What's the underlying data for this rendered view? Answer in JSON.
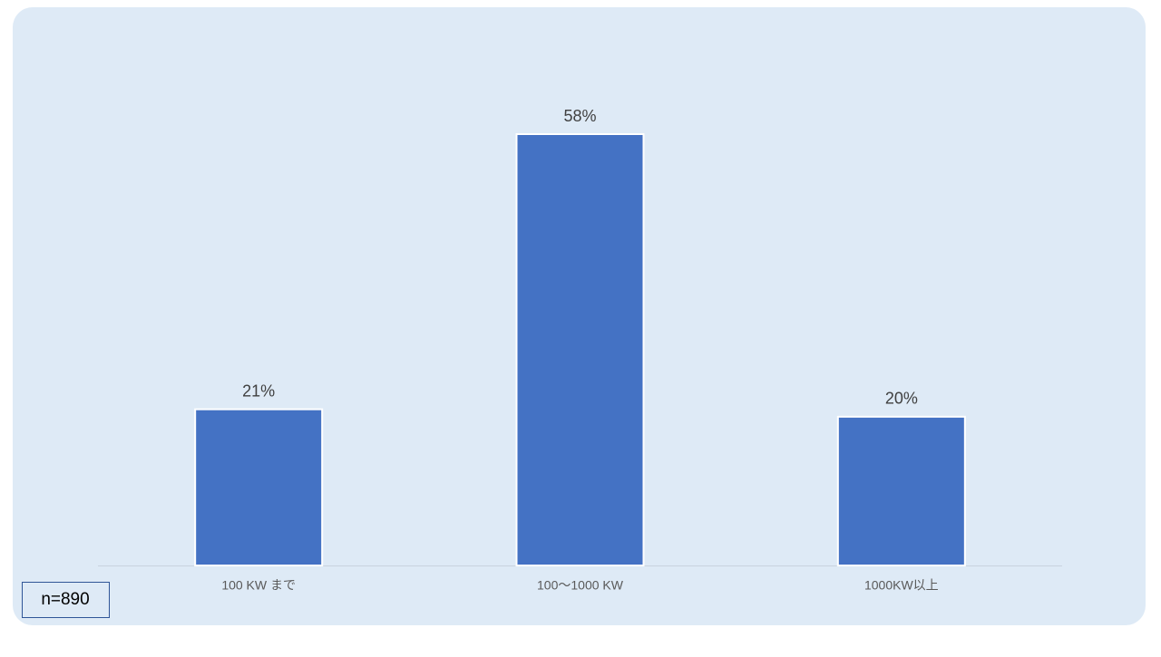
{
  "chart_data": {
    "type": "bar",
    "categories": [
      "100 KW まで",
      "100～1000 KW",
      "1000KW以上"
    ],
    "values": [
      21,
      58,
      20
    ],
    "value_labels": [
      "21%",
      "58%",
      "20%"
    ],
    "color": "#4472c4",
    "annotation": "n=890"
  }
}
